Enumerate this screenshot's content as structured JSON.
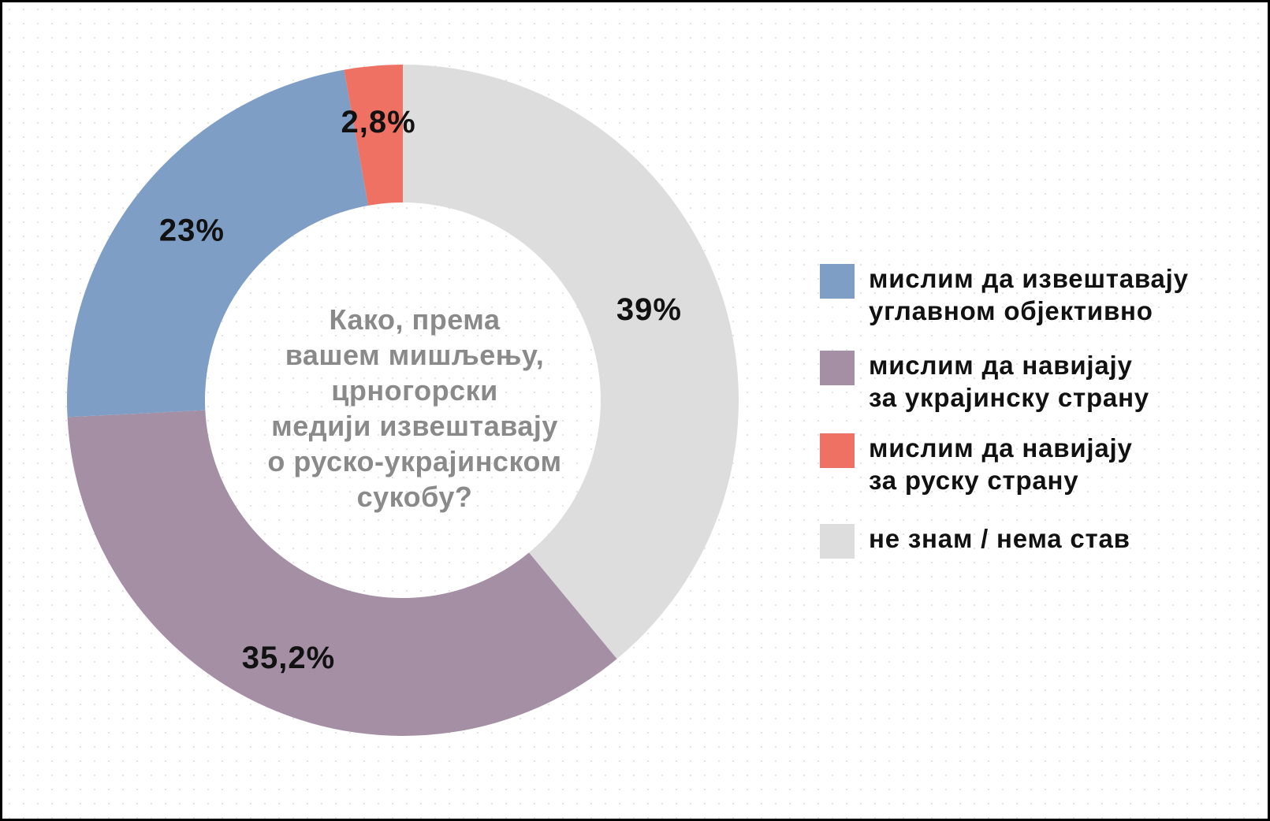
{
  "chart_data": {
    "type": "pie",
    "donut": true,
    "categories": [
      "не знам / нема став",
      "мислим да навијају\nза украјинску страну",
      "мислим да извештавају\nуглавном објективно",
      "мислим да навијају\nза руску страну"
    ],
    "values": [
      39,
      35.2,
      23,
      2.8
    ],
    "data_labels": [
      "39%",
      "35,2%",
      "23%",
      "2,8%"
    ],
    "colors": [
      "#dddddd",
      "#a48fa5",
      "#7f9ec6",
      "#ee7163"
    ],
    "center_text": "Како, према\nвашем мишљењу,\nцрногорски\nмедији извештавају\nо руско-украјинском\nсукобу?",
    "legend_position": "right",
    "legend": [
      {
        "label": "мислим да извештавају\nуглавном објективно",
        "color": "#7f9ec6"
      },
      {
        "label": "мислим да навијају\nза украјинску страну",
        "color": "#a48fa5"
      },
      {
        "label": "мислим да навијају\nза руску страну",
        "color": "#ee7163"
      },
      {
        "label": "не знам / нема став",
        "color": "#dddddd"
      }
    ],
    "label_color": "#111111",
    "center_text_color": "#8a8a8a"
  }
}
